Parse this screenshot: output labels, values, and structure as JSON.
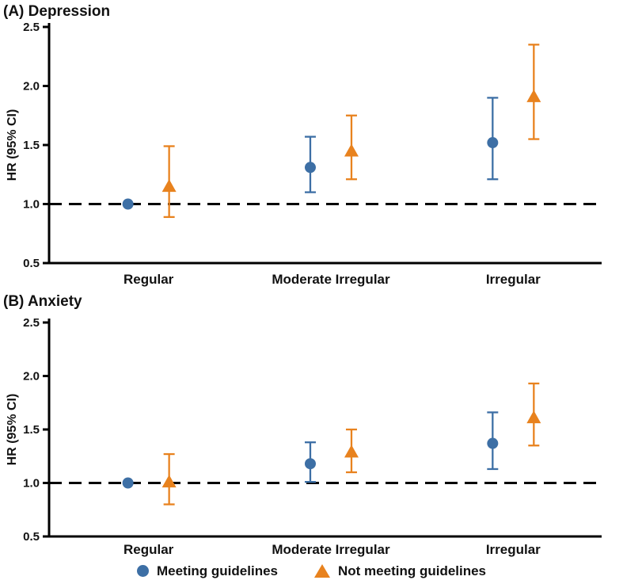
{
  "chart_data": [
    {
      "type": "scatter",
      "panel": "A",
      "title": "(A) Depression",
      "ylabel": "HR (95% CI)",
      "ylim": [
        0.5,
        2.5
      ],
      "yticks": [
        0.5,
        1.0,
        1.5,
        2.0,
        2.5
      ],
      "reference_line": 1.0,
      "grid": false,
      "categories": [
        "Regular",
        "Moderate Irregular",
        "Irregular"
      ],
      "series": [
        {
          "name": "Meeting guidelines",
          "marker": "circle",
          "color": "#3D6FA5",
          "points": [
            {
              "hr": 1.0,
              "lo": null,
              "hi": null
            },
            {
              "hr": 1.31,
              "lo": 1.1,
              "hi": 1.57
            },
            {
              "hr": 1.52,
              "lo": 1.21,
              "hi": 1.9
            }
          ]
        },
        {
          "name": "Not meeting guidelines",
          "marker": "triangle",
          "color": "#E8821E",
          "points": [
            {
              "hr": 1.15,
              "lo": 0.89,
              "hi": 1.49
            },
            {
              "hr": 1.45,
              "lo": 1.21,
              "hi": 1.75
            },
            {
              "hr": 1.91,
              "lo": 1.55,
              "hi": 2.35
            }
          ]
        }
      ]
    },
    {
      "type": "scatter",
      "panel": "B",
      "title": "(B) Anxiety",
      "ylabel": "HR (95% CI)",
      "ylim": [
        0.5,
        2.5
      ],
      "yticks": [
        0.5,
        1.0,
        1.5,
        2.0,
        2.5
      ],
      "reference_line": 1.0,
      "grid": false,
      "categories": [
        "Regular",
        "Moderate Irregular",
        "Irregular"
      ],
      "series": [
        {
          "name": "Meeting guidelines",
          "marker": "circle",
          "color": "#3D6FA5",
          "points": [
            {
              "hr": 1.0,
              "lo": null,
              "hi": null
            },
            {
              "hr": 1.18,
              "lo": 1.01,
              "hi": 1.38
            },
            {
              "hr": 1.37,
              "lo": 1.13,
              "hi": 1.66
            }
          ]
        },
        {
          "name": "Not meeting guidelines",
          "marker": "triangle",
          "color": "#E8821E",
          "points": [
            {
              "hr": 1.01,
              "lo": 0.8,
              "hi": 1.27
            },
            {
              "hr": 1.29,
              "lo": 1.1,
              "hi": 1.5
            },
            {
              "hr": 1.61,
              "lo": 1.35,
              "hi": 1.93
            }
          ]
        }
      ]
    }
  ],
  "legend": {
    "items": [
      {
        "label": "Meeting guidelines",
        "marker": "circle",
        "color": "#3D6FA5"
      },
      {
        "label": "Not meeting guidelines",
        "marker": "triangle",
        "color": "#E8821E"
      }
    ]
  }
}
